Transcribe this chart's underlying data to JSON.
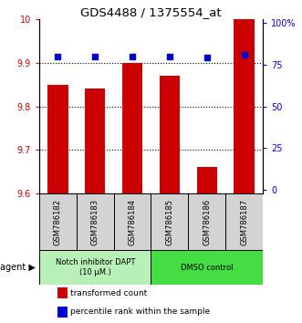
{
  "title": "GDS4488 / 1375554_at",
  "samples": [
    "GSM786182",
    "GSM786183",
    "GSM786184",
    "GSM786185",
    "GSM786186",
    "GSM786187"
  ],
  "bar_values": [
    9.85,
    9.84,
    9.9,
    9.87,
    9.66,
    10.0
  ],
  "percentile_values": [
    80,
    80,
    80,
    80,
    79,
    81
  ],
  "ylim": [
    9.6,
    10.0
  ],
  "y_ticks": [
    9.6,
    9.7,
    9.8,
    9.9,
    10
  ],
  "y_tick_labels": [
    "9.6",
    "9.7",
    "9.8",
    "9.9",
    "10"
  ],
  "right_y_ticks": [
    0,
    25,
    50,
    75,
    100
  ],
  "right_y_tick_labels": [
    "0",
    "25",
    "50",
    "75",
    "100%"
  ],
  "bar_color": "#cc0000",
  "dot_color": "#0000cc",
  "bar_bottom": 9.6,
  "group1_label": "Notch inhibitor DAPT\n(10 μM.)",
  "group2_label": "DMSO control",
  "group1_color": "#b8f0b8",
  "group2_color": "#44dd44",
  "group1_samples": [
    0,
    1,
    2
  ],
  "group2_samples": [
    3,
    4,
    5
  ],
  "agent_label": "agent",
  "legend_bar_label": "transformed count",
  "legend_dot_label": "percentile rank within the sample",
  "left_tick_color": "#cc0000",
  "right_tick_color": "#0000cc",
  "bar_width": 0.55,
  "dot_size": 5,
  "figsize": [
    3.31,
    3.54
  ],
  "dpi": 100
}
